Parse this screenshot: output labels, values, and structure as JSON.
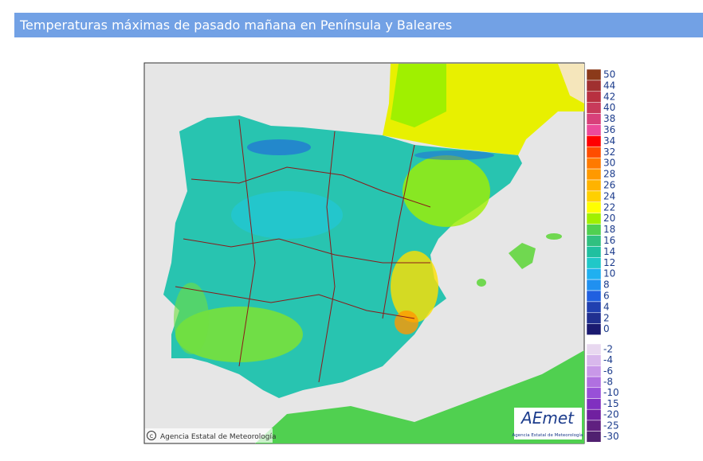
{
  "header": {
    "title": "Temperaturas máximas de pasado mañana en Península y Baleares"
  },
  "map": {
    "credit": "Agencia Estatal de Meteorología",
    "logo": "AEmet",
    "logo_subtitle": "Agencia Estatal de Meteorología"
  },
  "legend": {
    "items": [
      {
        "value": 50,
        "color": "#8b3a1a"
      },
      {
        "value": 44,
        "color": "#a03030"
      },
      {
        "value": 42,
        "color": "#b83040"
      },
      {
        "value": 40,
        "color": "#c83a5a"
      },
      {
        "value": 38,
        "color": "#d8407a"
      },
      {
        "value": 36,
        "color": "#ec4a9a"
      },
      {
        "value": 34,
        "color": "#ff0000"
      },
      {
        "value": 32,
        "color": "#ff4d00"
      },
      {
        "value": 30,
        "color": "#ff7a00"
      },
      {
        "value": 28,
        "color": "#ff9900"
      },
      {
        "value": 26,
        "color": "#ffb300"
      },
      {
        "value": 24,
        "color": "#ffd000"
      },
      {
        "value": 22,
        "color": "#ffff00"
      },
      {
        "value": 20,
        "color": "#a0f000"
      },
      {
        "value": 18,
        "color": "#50d050"
      },
      {
        "value": 16,
        "color": "#30c080"
      },
      {
        "value": 14,
        "color": "#20c0a0"
      },
      {
        "value": 12,
        "color": "#20c8c8"
      },
      {
        "value": 10,
        "color": "#20b0f0"
      },
      {
        "value": 8,
        "color": "#2090f0"
      },
      {
        "value": 6,
        "color": "#2060e0"
      },
      {
        "value": 4,
        "color": "#2040b0"
      },
      {
        "value": 2,
        "color": "#203090"
      },
      {
        "value": 0,
        "color": "#1a1a70"
      }
    ],
    "cold_items": [
      {
        "value": -2,
        "color": "#e8d8f0"
      },
      {
        "value": -4,
        "color": "#d8b8ec"
      },
      {
        "value": -6,
        "color": "#c898e8"
      },
      {
        "value": -8,
        "color": "#b070e0"
      },
      {
        "value": -10,
        "color": "#9850d8"
      },
      {
        "value": -15,
        "color": "#8030c0"
      },
      {
        "value": -20,
        "color": "#7020a0"
      },
      {
        "value": -25,
        "color": "#602080"
      },
      {
        "value": -30,
        "color": "#502070"
      }
    ]
  }
}
